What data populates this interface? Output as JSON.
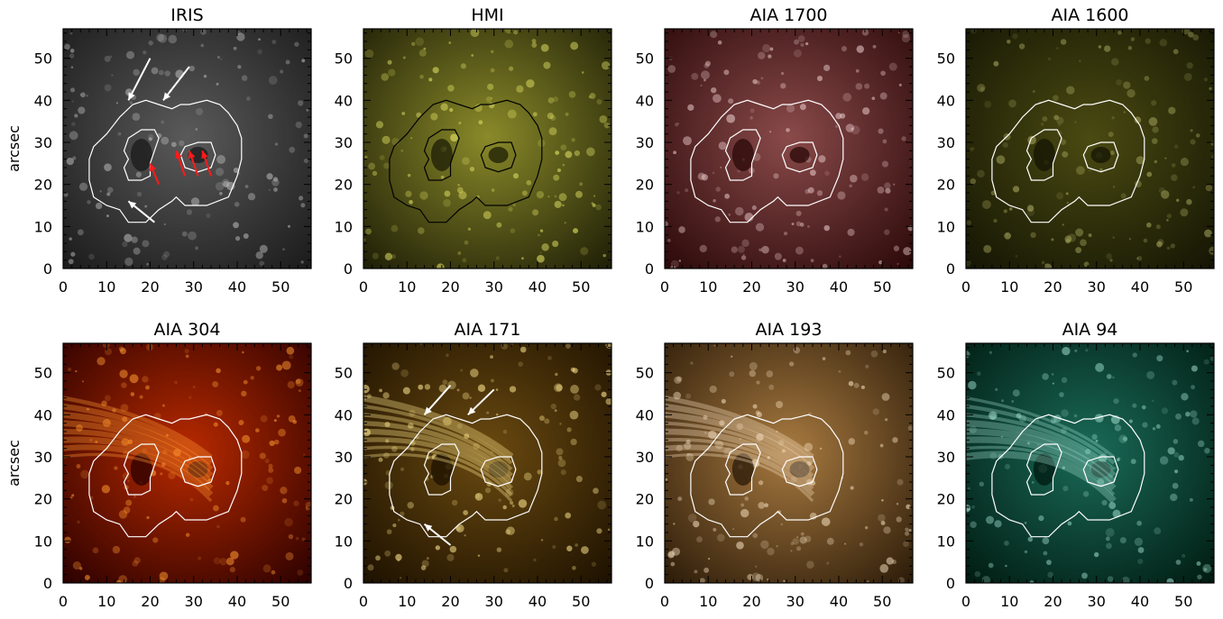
{
  "figure": {
    "y_axis_label": "arcsec",
    "x_ticks": [
      "0",
      "10",
      "20",
      "30",
      "40",
      "50"
    ],
    "y_ticks": [
      "0",
      "10",
      "20",
      "30",
      "40",
      "50"
    ],
    "axis_range": [
      0,
      57
    ],
    "panels": [
      {
        "title": "IRIS",
        "colormap": "gray",
        "colors": [
          "#1a1a1a",
          "#5a5a5a",
          "#b8b8b8"
        ],
        "contour_color": "#ffffff",
        "arrows": [
          {
            "color": "#ffffff",
            "from": [
              20,
              50
            ],
            "to": [
              15,
              40
            ]
          },
          {
            "color": "#ffffff",
            "from": [
              29,
              48
            ],
            "to": [
              23,
              40
            ]
          },
          {
            "color": "#ffffff",
            "from": [
              21,
              11
            ],
            "to": [
              15,
              16
            ]
          },
          {
            "color": "#ff1a1a",
            "from": [
              22,
              20
            ],
            "to": [
              20,
              25
            ]
          },
          {
            "color": "#ff1a1a",
            "from": [
              28,
              22
            ],
            "to": [
              26,
              28
            ]
          },
          {
            "color": "#ff1a1a",
            "from": [
              31,
              22
            ],
            "to": [
              29,
              28
            ]
          },
          {
            "color": "#ff1a1a",
            "from": [
              34,
              22
            ],
            "to": [
              32,
              28
            ]
          }
        ]
      },
      {
        "title": "HMI",
        "colormap": "yellow",
        "colors": [
          "#1c1c06",
          "#8a8a2a",
          "#e8e86a"
        ],
        "contour_color": "#000000",
        "arrows": []
      },
      {
        "title": "AIA  1700",
        "colormap": "maroon",
        "colors": [
          "#2a0808",
          "#8a4a4a",
          "#e8c8c8"
        ],
        "contour_color": "#ffffff",
        "arrows": []
      },
      {
        "title": "AIA  1600",
        "colormap": "olive",
        "colors": [
          "#141404",
          "#4a4a12",
          "#a8a860"
        ],
        "contour_color": "#ffffff",
        "arrows": []
      },
      {
        "title": "AIA  304",
        "colormap": "red-orange",
        "colors": [
          "#2a0000",
          "#b82a00",
          "#ff9a30"
        ],
        "contour_color": "#ffffff",
        "arrows": []
      },
      {
        "title": "AIA  171",
        "colormap": "gold",
        "colors": [
          "#1c1000",
          "#6a4a10",
          "#ffe890"
        ],
        "contour_color": "#ffffff",
        "arrows": [
          {
            "color": "#ffffff",
            "from": [
              20,
              47
            ],
            "to": [
              14,
              40
            ]
          },
          {
            "color": "#ffffff",
            "from": [
              30,
              46
            ],
            "to": [
              24,
              40
            ]
          },
          {
            "color": "#ffffff",
            "from": [
              20,
              9
            ],
            "to": [
              14,
              14
            ]
          }
        ]
      },
      {
        "title": "AIA  193",
        "colormap": "copper",
        "colors": [
          "#2a1a08",
          "#a87a40",
          "#f5e0c0"
        ],
        "contour_color": "#ffffff",
        "arrows": []
      },
      {
        "title": "AIA  94",
        "colormap": "teal",
        "colors": [
          "#001a10",
          "#1a6a58",
          "#9ad8c8"
        ],
        "contour_color": "#ffffff",
        "arrows": []
      }
    ]
  }
}
